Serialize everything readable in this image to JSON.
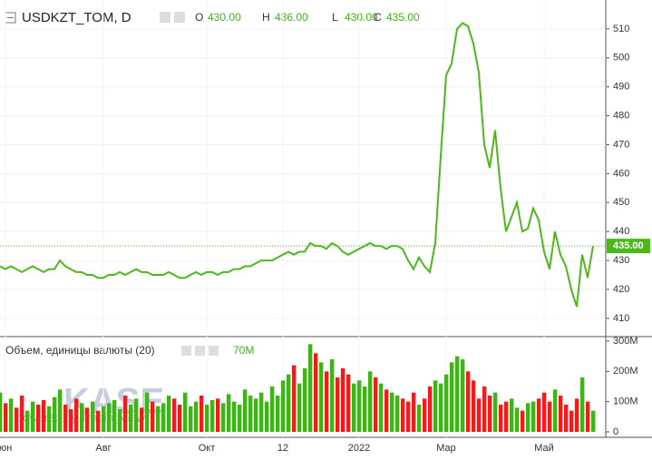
{
  "header": {
    "ohlc": [
      {
        "key": "O",
        "value": "430.00"
      },
      {
        "key": "H",
        "value": "436.00"
      },
      {
        "key": "L",
        "value": "430.00"
      },
      {
        "key": "C",
        "value": "435.00"
      }
    ]
  },
  "watermark": {
    "logo": "KASE",
    "credit": "powered by TradingView"
  },
  "chart_data": [
    {
      "type": "line",
      "title": "USDKZT_TOM, D",
      "color": "#4cb81c",
      "last_label": "435.00",
      "xticks": [
        {
          "value": 1,
          "label": "юн"
        },
        {
          "value": 19,
          "label": "Авг"
        },
        {
          "value": 38,
          "label": "Окт"
        },
        {
          "value": 52,
          "label": "12"
        },
        {
          "value": 66,
          "label": "2022"
        },
        {
          "value": 82,
          "label": "Мар"
        },
        {
          "value": 100,
          "label": "Май"
        }
      ],
      "ylim": [
        404,
        520
      ],
      "yticks": [
        410,
        420,
        430,
        440,
        450,
        460,
        470,
        480,
        490,
        500,
        510
      ],
      "grid": true,
      "values": [
        428,
        427,
        428,
        427,
        426,
        427,
        428,
        427,
        426,
        427,
        427,
        430,
        428,
        427,
        426,
        426,
        425,
        425,
        424,
        424,
        425,
        425,
        426,
        425,
        426,
        427,
        426,
        426,
        425,
        425,
        425,
        426,
        425,
        424,
        424,
        425,
        426,
        425,
        426,
        426,
        425,
        426,
        426,
        427,
        427,
        428,
        428,
        429,
        430,
        430,
        430,
        431,
        432,
        433,
        432,
        433,
        433,
        436,
        435,
        435,
        434,
        436,
        435,
        433,
        432,
        433,
        434,
        435,
        436,
        435,
        435,
        434,
        435,
        435,
        434,
        430,
        427,
        431,
        428,
        426,
        436,
        466,
        494,
        498,
        510,
        512,
        511,
        505,
        495,
        470,
        462,
        475,
        455,
        440,
        445,
        450,
        440,
        441,
        448,
        444,
        433,
        427,
        440,
        432,
        428,
        420,
        414,
        432,
        424,
        435
      ]
    },
    {
      "type": "bar",
      "title": "Объем, единицы валюты (20)",
      "last_label": "70M",
      "up_color": "#3db516",
      "down_color": "#f21b1b",
      "ylim": [
        0,
        312
      ],
      "yticks": [
        {
          "value": 0,
          "label": "0"
        },
        {
          "value": 100,
          "label": "100M"
        },
        {
          "value": 200,
          "label": "200M"
        },
        {
          "value": 300,
          "label": "300M"
        }
      ],
      "values": [
        130,
        95,
        110,
        80,
        120,
        70,
        100,
        90,
        105,
        85,
        115,
        140,
        90,
        75,
        110,
        95,
        80,
        100,
        70,
        85,
        95,
        105,
        75,
        120,
        90,
        110,
        80,
        130,
        100,
        85,
        95,
        120,
        110,
        90,
        130,
        85,
        100,
        120,
        90,
        105,
        110,
        95,
        125,
        100,
        90,
        140,
        120,
        110,
        130,
        100,
        150,
        120,
        170,
        190,
        220,
        160,
        210,
        290,
        260,
        230,
        200,
        240,
        180,
        210,
        190,
        160,
        170,
        150,
        200,
        180,
        160,
        140,
        130,
        120,
        110,
        100,
        130,
        90,
        110,
        150,
        170,
        160,
        190,
        230,
        250,
        240,
        200,
        170,
        110,
        150,
        120,
        130,
        90,
        100,
        110,
        80,
        70,
        95,
        100,
        110,
        130,
        100,
        140,
        120,
        90,
        70,
        110,
        180,
        100,
        70
      ]
    }
  ]
}
